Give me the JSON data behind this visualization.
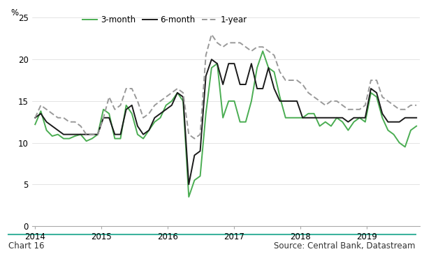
{
  "ylabel": "%",
  "ylim": [
    0,
    25
  ],
  "yticks": [
    0,
    5,
    10,
    15,
    20,
    25
  ],
  "footer_left": "Chart 16",
  "footer_right": "Source: Central Bank, Datastream",
  "top_bar_color": "#3db39e",
  "footer_bar_color": "#3db39e",
  "footer_text_color": "#333333",
  "background_color": "#ffffff",
  "line_3month_color": "#4aad52",
  "line_6month_color": "#1a1a1a",
  "line_1year_color": "#999999",
  "x_labels": [
    "2014",
    "2015",
    "2016",
    "2017",
    "2018",
    "2019"
  ],
  "series_3month": [
    12.2,
    13.8,
    11.5,
    10.8,
    11.0,
    10.5,
    10.5,
    10.8,
    11.0,
    10.2,
    10.5,
    11.0,
    14.0,
    13.5,
    10.5,
    10.5,
    14.5,
    13.5,
    11.0,
    10.5,
    11.5,
    12.5,
    13.0,
    14.5,
    15.0,
    16.0,
    15.0,
    3.5,
    5.5,
    6.0,
    13.5,
    19.0,
    19.5,
    13.0,
    15.0,
    15.0,
    12.5,
    12.5,
    15.0,
    19.0,
    21.0,
    19.0,
    18.5,
    15.5,
    13.0,
    13.0,
    13.0,
    13.0,
    13.5,
    13.5,
    12.0,
    12.5,
    12.0,
    13.0,
    12.5,
    11.5,
    12.5,
    13.0,
    12.5,
    16.0,
    15.5,
    13.0,
    11.5,
    11.0,
    10.0,
    9.5,
    11.5,
    12.0
  ],
  "series_6month": [
    13.0,
    13.5,
    12.5,
    12.0,
    11.5,
    11.0,
    11.0,
    11.0,
    11.0,
    11.0,
    11.0,
    11.0,
    13.0,
    13.0,
    11.0,
    11.0,
    14.0,
    14.5,
    12.0,
    11.0,
    11.5,
    13.0,
    13.5,
    14.0,
    14.5,
    16.0,
    15.5,
    5.0,
    8.5,
    9.0,
    18.0,
    20.0,
    19.5,
    17.0,
    19.5,
    19.5,
    17.0,
    17.0,
    19.5,
    16.5,
    16.5,
    19.0,
    16.5,
    15.0,
    15.0,
    15.0,
    15.0,
    13.0,
    13.0,
    13.0,
    13.0,
    13.0,
    13.0,
    13.0,
    13.0,
    12.5,
    13.0,
    13.0,
    13.0,
    16.5,
    16.0,
    13.5,
    12.5,
    12.5,
    12.5,
    13.0,
    13.0,
    13.0
  ],
  "series_1year": [
    13.0,
    14.5,
    14.0,
    13.5,
    13.0,
    13.0,
    12.5,
    12.5,
    12.0,
    11.0,
    11.0,
    11.0,
    13.0,
    15.5,
    14.0,
    14.5,
    16.5,
    16.5,
    15.0,
    13.0,
    13.5,
    14.5,
    15.0,
    15.5,
    16.0,
    16.5,
    16.0,
    11.0,
    10.5,
    11.0,
    20.5,
    23.0,
    22.0,
    21.5,
    22.0,
    22.0,
    22.0,
    21.5,
    21.0,
    21.5,
    21.5,
    21.0,
    20.5,
    18.5,
    17.5,
    17.5,
    17.5,
    17.0,
    16.0,
    15.5,
    15.0,
    14.5,
    15.0,
    15.0,
    14.5,
    14.0,
    14.0,
    14.0,
    14.5,
    17.5,
    17.5,
    15.5,
    15.0,
    14.5,
    14.0,
    14.0,
    14.5,
    14.5
  ]
}
